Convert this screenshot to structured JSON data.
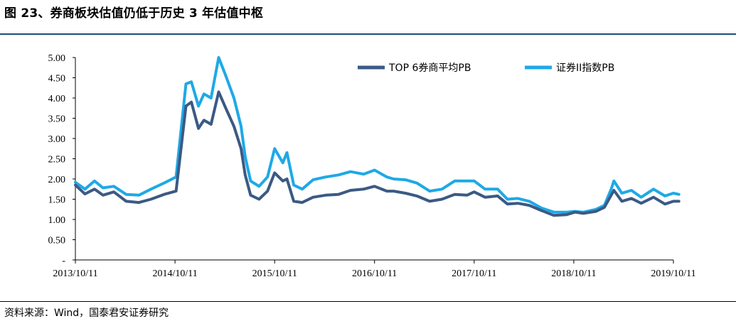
{
  "figure": {
    "title": "图 23、券商板块估值仍低于历史 3 年估值中枢",
    "source": "资料来源：Wind，国泰君安证券研究"
  },
  "chart_data": {
    "type": "line",
    "x_tick_labels": [
      "2013/10/11",
      "2014/10/11",
      "2015/10/11",
      "2016/10/11",
      "2017/10/11",
      "2018/10/11",
      "2019/10/11"
    ],
    "x_range": [
      "2013/10/11",
      "2019/10/11"
    ],
    "y_tick_labels": [
      "-",
      "0.50",
      "1.00",
      "1.50",
      "2.00",
      "2.50",
      "3.00",
      "3.50",
      "4.00",
      "4.50",
      "5.00"
    ],
    "ylim": [
      0,
      5
    ],
    "legend_position": "top-right",
    "grid": false,
    "series": [
      {
        "name": "TOP 6券商平均PB",
        "color": "#3b5a84",
        "x": [
          "2013/10/11",
          "2013/11/15",
          "2013/12/20",
          "2014/01/20",
          "2014/03/01",
          "2014/04/15",
          "2014/06/01",
          "2014/07/15",
          "2014/09/01",
          "2014/10/15",
          "2014/11/20",
          "2014/12/10",
          "2015/01/05",
          "2015/01/25",
          "2015/02/20",
          "2015/03/20",
          "2015/04/15",
          "2015/05/15",
          "2015/06/10",
          "2015/06/25",
          "2015/07/15",
          "2015/08/15",
          "2015/09/15",
          "2015/10/11",
          "2015/11/10",
          "2015/11/25",
          "2015/12/20",
          "2016/01/20",
          "2016/02/29",
          "2016/04/15",
          "2016/06/01",
          "2016/07/15",
          "2016/09/01",
          "2016/10/11",
          "2016/11/25",
          "2016/12/20",
          "2017/02/01",
          "2017/03/15",
          "2017/05/01",
          "2017/06/15",
          "2017/08/01",
          "2017/09/15",
          "2017/10/11",
          "2017/11/20",
          "2018/01/05",
          "2018/02/10",
          "2018/03/20",
          "2018/05/01",
          "2018/06/15",
          "2018/07/30",
          "2018/09/15",
          "2018/10/15",
          "2018/11/15",
          "2018/12/31",
          "2019/01/31",
          "2019/02/25",
          "2019/03/07",
          "2019/04/05",
          "2019/05/10",
          "2019/06/15",
          "2019/07/30",
          "2019/09/10",
          "2019/10/11",
          "2019/10/31"
        ],
        "values": [
          1.85,
          1.63,
          1.75,
          1.6,
          1.68,
          1.45,
          1.42,
          1.5,
          1.62,
          1.7,
          3.8,
          3.9,
          3.25,
          3.45,
          3.35,
          4.15,
          3.75,
          3.3,
          2.75,
          2.1,
          1.6,
          1.5,
          1.7,
          2.15,
          1.95,
          2.0,
          1.45,
          1.42,
          1.55,
          1.6,
          1.62,
          1.72,
          1.75,
          1.82,
          1.7,
          1.7,
          1.65,
          1.58,
          1.45,
          1.5,
          1.62,
          1.6,
          1.68,
          1.55,
          1.58,
          1.38,
          1.4,
          1.35,
          1.22,
          1.1,
          1.12,
          1.18,
          1.15,
          1.2,
          1.3,
          1.6,
          1.72,
          1.45,
          1.52,
          1.4,
          1.55,
          1.38,
          1.45,
          1.45
        ]
      },
      {
        "name": "证券II指数PB",
        "color": "#1ea9e6",
        "x": [
          "2013/10/11",
          "2013/11/15",
          "2013/12/20",
          "2014/01/20",
          "2014/03/01",
          "2014/04/15",
          "2014/06/01",
          "2014/07/15",
          "2014/09/01",
          "2014/10/15",
          "2014/11/20",
          "2014/12/10",
          "2015/01/05",
          "2015/01/25",
          "2015/02/20",
          "2015/03/20",
          "2015/04/15",
          "2015/05/15",
          "2015/06/10",
          "2015/06/25",
          "2015/07/15",
          "2015/08/15",
          "2015/09/15",
          "2015/10/11",
          "2015/11/10",
          "2015/11/25",
          "2015/12/20",
          "2016/01/20",
          "2016/02/29",
          "2016/04/15",
          "2016/06/01",
          "2016/07/15",
          "2016/09/01",
          "2016/10/11",
          "2016/11/25",
          "2016/12/20",
          "2017/02/01",
          "2017/03/15",
          "2017/05/01",
          "2017/06/15",
          "2017/08/01",
          "2017/09/15",
          "2017/10/11",
          "2017/11/20",
          "2018/01/05",
          "2018/02/10",
          "2018/03/20",
          "2018/05/01",
          "2018/06/15",
          "2018/07/30",
          "2018/09/15",
          "2018/10/15",
          "2018/11/15",
          "2018/12/31",
          "2019/01/31",
          "2019/02/25",
          "2019/03/07",
          "2019/04/05",
          "2019/05/10",
          "2019/06/15",
          "2019/07/30",
          "2019/09/10",
          "2019/10/11",
          "2019/10/31"
        ],
        "values": [
          1.92,
          1.75,
          1.95,
          1.78,
          1.82,
          1.62,
          1.6,
          1.75,
          1.9,
          2.05,
          4.35,
          4.4,
          3.8,
          4.1,
          4.0,
          5.0,
          4.55,
          4.0,
          3.3,
          2.55,
          1.95,
          1.82,
          2.05,
          2.75,
          2.4,
          2.65,
          1.85,
          1.75,
          1.98,
          2.05,
          2.1,
          2.18,
          2.12,
          2.22,
          2.05,
          2.0,
          1.98,
          1.9,
          1.7,
          1.75,
          1.95,
          1.95,
          1.95,
          1.75,
          1.75,
          1.5,
          1.52,
          1.45,
          1.28,
          1.18,
          1.18,
          1.2,
          1.18,
          1.25,
          1.35,
          1.75,
          1.95,
          1.65,
          1.72,
          1.55,
          1.75,
          1.58,
          1.65,
          1.62
        ]
      }
    ]
  }
}
